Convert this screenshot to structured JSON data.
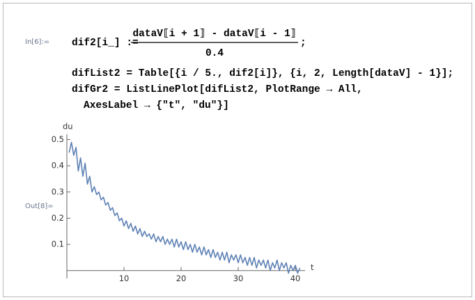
{
  "input": {
    "label": "In[6]:=",
    "lhs": "dif2[i_] :=",
    "numerator": "dataV⟦i + 1⟧ - dataV⟦i - 1⟧",
    "denominator": "0.4",
    "end": ";",
    "lines": [
      "difList2 = Table[{i / 5., dif2[i]}, {i, 2, Length[dataV] - 1}];",
      "difGr2 = ListLinePlot[difList2, PlotRange → All,",
      "AxesLabel → {\"t\", \"du\"}]"
    ]
  },
  "output": {
    "label": "Out[8]="
  },
  "chart_data": {
    "type": "line",
    "xlabel": "t",
    "ylabel": "du",
    "x": [
      0.4,
      0.8,
      1.2,
      1.6,
      2.0,
      2.4,
      2.8,
      3.2,
      3.6,
      4.0,
      4.4,
      4.8,
      5.2,
      5.6,
      6.0,
      6.4,
      6.8,
      7.2,
      7.6,
      8.0,
      8.4,
      8.8,
      9.2,
      9.6,
      10.0,
      10.4,
      10.8,
      11.2,
      11.6,
      12.0,
      12.4,
      12.8,
      13.2,
      13.6,
      14.0,
      14.4,
      14.8,
      15.2,
      15.6,
      16.0,
      16.4,
      16.8,
      17.2,
      17.6,
      18.0,
      18.4,
      18.8,
      19.2,
      19.6,
      20.0,
      20.4,
      20.8,
      21.2,
      21.6,
      22.0,
      22.4,
      22.8,
      23.2,
      23.6,
      24.0,
      24.4,
      24.8,
      25.2,
      25.6,
      26.0,
      26.4,
      26.8,
      27.2,
      27.6,
      28.0,
      28.4,
      28.8,
      29.2,
      29.6,
      30.0,
      30.4,
      30.8,
      31.2,
      31.6,
      32.0,
      32.4,
      32.8,
      33.2,
      33.6,
      34.0,
      34.4,
      34.8,
      35.2,
      35.6,
      36.0,
      36.4,
      36.8,
      37.2,
      37.6,
      38.0,
      38.4,
      38.8,
      39.2,
      39.6,
      40.0,
      40.4,
      40.8
    ],
    "series": [
      {
        "color": "#5e81b5",
        "values": [
          0.45,
          0.49,
          0.44,
          0.47,
          0.38,
          0.43,
          0.36,
          0.41,
          0.33,
          0.36,
          0.3,
          0.32,
          0.29,
          0.3,
          0.27,
          0.28,
          0.25,
          0.26,
          0.23,
          0.24,
          0.21,
          0.22,
          0.19,
          0.2,
          0.17,
          0.19,
          0.16,
          0.18,
          0.15,
          0.17,
          0.14,
          0.16,
          0.13,
          0.15,
          0.13,
          0.14,
          0.12,
          0.14,
          0.11,
          0.13,
          0.11,
          0.13,
          0.1,
          0.12,
          0.1,
          0.12,
          0.09,
          0.12,
          0.09,
          0.11,
          0.08,
          0.11,
          0.08,
          0.1,
          0.07,
          0.1,
          0.07,
          0.09,
          0.06,
          0.09,
          0.06,
          0.08,
          0.05,
          0.08,
          0.05,
          0.07,
          0.04,
          0.07,
          0.04,
          0.07,
          0.03,
          0.06,
          0.04,
          0.06,
          0.03,
          0.06,
          0.03,
          0.05,
          0.02,
          0.05,
          0.02,
          0.05,
          0.01,
          0.04,
          0.02,
          0.04,
          0.01,
          0.04,
          0.0,
          0.03,
          0.01,
          0.04,
          0.0,
          0.03,
          0.01,
          0.03,
          -0.01,
          0.02,
          0.0,
          0.02,
          -0.01,
          0.01
        ]
      }
    ],
    "xlim": [
      0,
      41.7
    ],
    "ylim": [
      -0.03,
      0.52
    ],
    "xticks": [
      10,
      20,
      30,
      40
    ],
    "yticks": [
      0.1,
      0.2,
      0.3,
      0.4,
      0.5
    ]
  }
}
